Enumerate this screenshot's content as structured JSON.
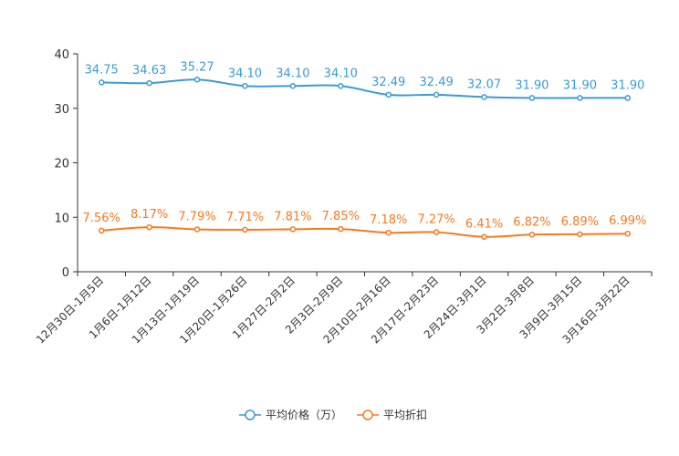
{
  "chart_data": {
    "type": "line",
    "title": "",
    "xlabel": "",
    "ylabel": "",
    "ylim": [
      0,
      40
    ],
    "yticks": [
      0,
      10,
      20,
      30,
      40
    ],
    "grid": false,
    "legend_position": "bottom-center",
    "categories": [
      "12月30日-1月5日",
      "1月6日-1月12日",
      "1月13日-1月19日",
      "1月20日-1月26日",
      "1月27日-2月2日",
      "2月3日-2月9日",
      "2月10日-2月16日",
      "2月17日-2月23日",
      "2月24日-3月1日",
      "3月2日-3月8日",
      "3月9日-3月15日",
      "3月16日-3月22日"
    ],
    "series": [
      {
        "name": "平均价格（万）",
        "color": "#3a9bd5",
        "values": [
          34.75,
          34.63,
          35.27,
          34.1,
          34.1,
          34.1,
          32.49,
          32.49,
          32.07,
          31.9,
          31.9,
          31.9
        ],
        "labels": [
          "34.75",
          "34.63",
          "35.27",
          "34.10",
          "34.10",
          "34.10",
          "32.49",
          "32.49",
          "32.07",
          "31.90",
          "31.90",
          "31.90"
        ]
      },
      {
        "name": "平均折扣",
        "color": "#f57a1f",
        "values": [
          7.56,
          8.17,
          7.79,
          7.71,
          7.81,
          7.85,
          7.18,
          7.27,
          6.41,
          6.82,
          6.89,
          6.99
        ],
        "labels": [
          "7.56%",
          "8.17%",
          "7.79%",
          "7.71%",
          "7.81%",
          "7.85%",
          "7.18%",
          "7.27%",
          "6.41%",
          "6.82%",
          "6.89%",
          "6.99%"
        ]
      }
    ]
  }
}
